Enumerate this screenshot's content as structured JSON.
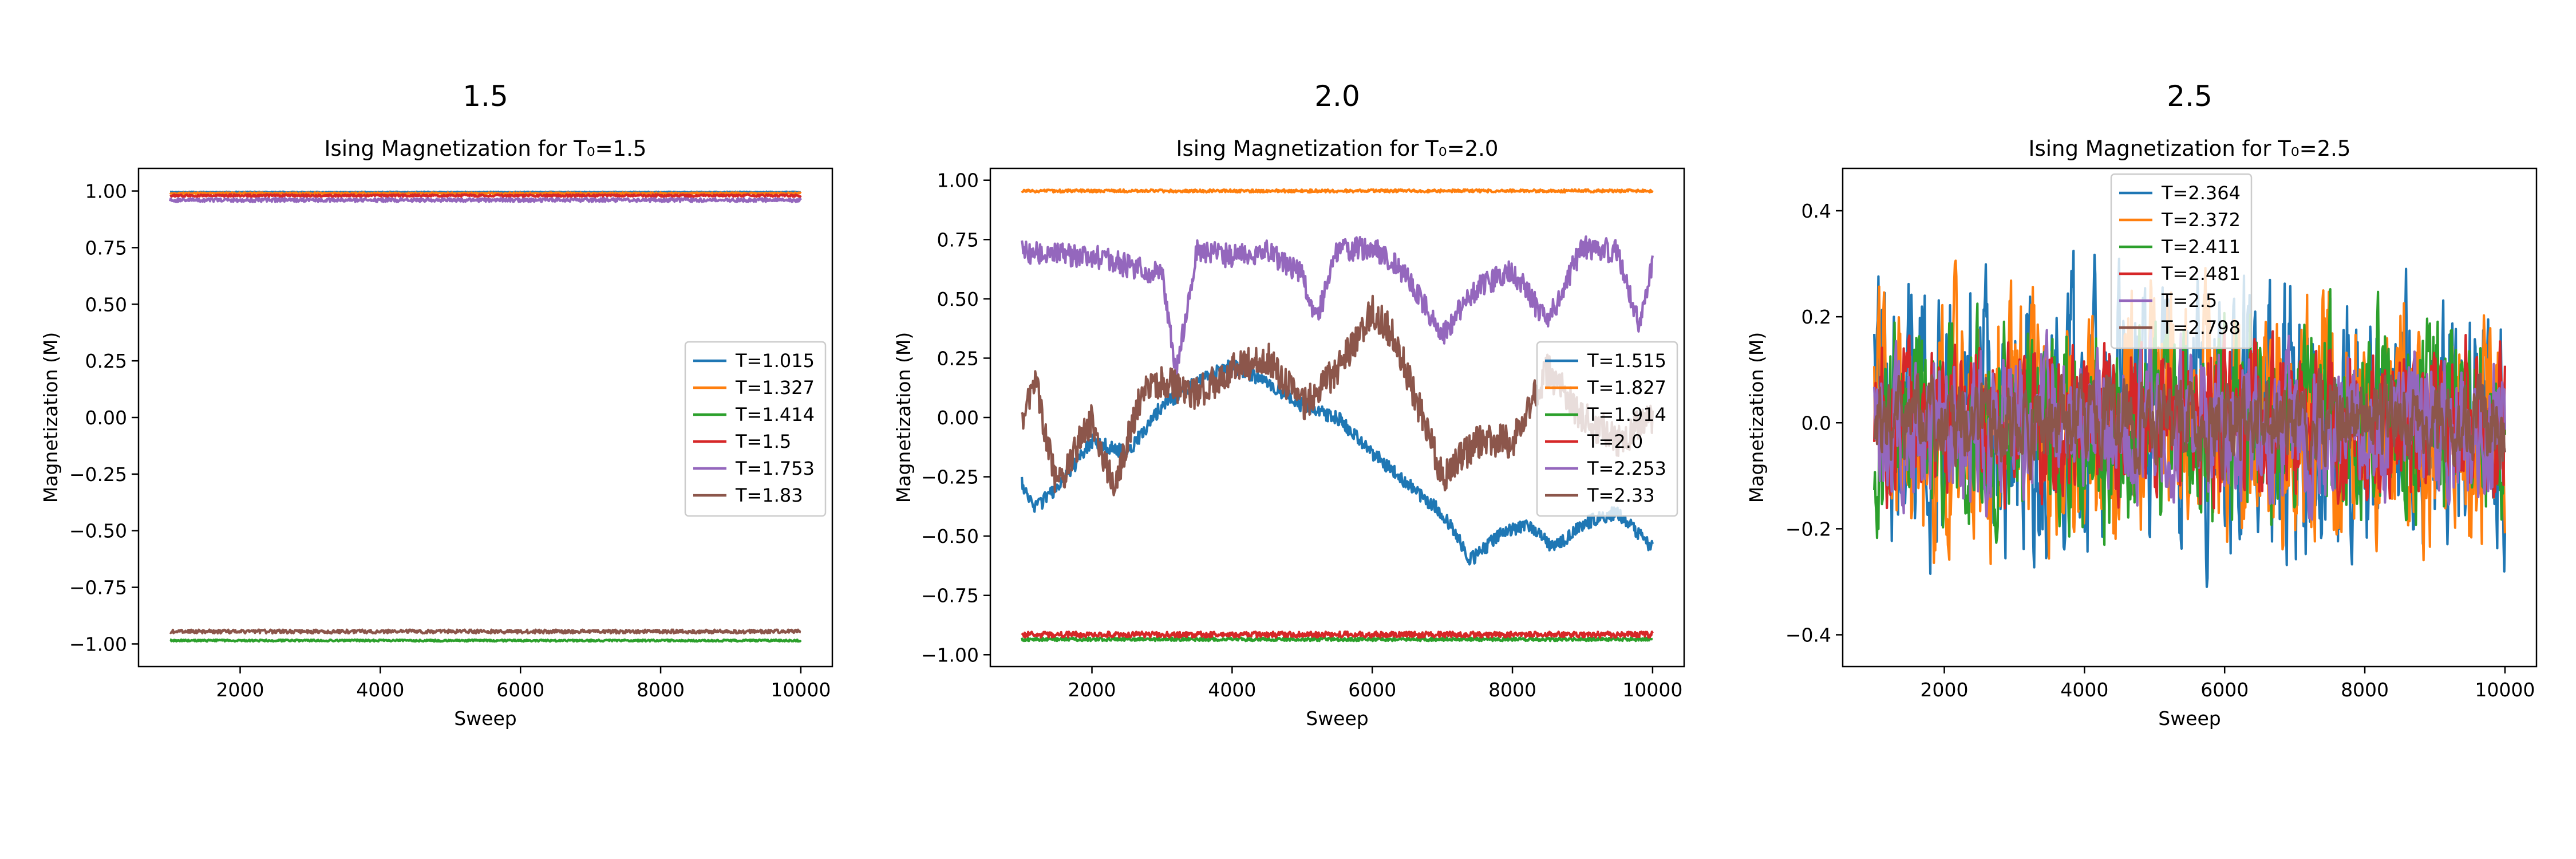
{
  "chart_data": [
    {
      "type": "line",
      "suptitle": "1.5",
      "title": "Ising Magnetization for T₀=1.5",
      "xlabel": "Sweep",
      "ylabel": "Magnetization (M)",
      "xlim": [
        550,
        10450
      ],
      "ylim": [
        -1.1,
        1.1
      ],
      "xticks": [
        2000,
        4000,
        6000,
        8000,
        10000
      ],
      "yticks": [
        -1.0,
        -0.75,
        -0.5,
        -0.25,
        0.0,
        0.25,
        0.5,
        0.75,
        1.0
      ],
      "ytick_labels": [
        "−1.00",
        "−0.75",
        "−0.50",
        "−0.25",
        "0.00",
        "0.25",
        "0.50",
        "0.75",
        "1.00"
      ],
      "grid": false,
      "legend_position": "center-right",
      "x_range": [
        1000,
        10000
      ],
      "series": [
        {
          "name": "T=1.015",
          "color": "#1f77b4",
          "level": 0.995,
          "noise": 0.002,
          "mode": "flat"
        },
        {
          "name": "T=1.327",
          "color": "#ff7f0e",
          "level": 0.99,
          "noise": 0.003,
          "mode": "flat"
        },
        {
          "name": "T=1.414",
          "color": "#2ca02c",
          "level": -0.985,
          "noise": 0.004,
          "mode": "flat"
        },
        {
          "name": "T=1.5",
          "color": "#d62728",
          "level": 0.98,
          "noise": 0.005,
          "mode": "flat"
        },
        {
          "name": "T=1.753",
          "color": "#9467bd",
          "level": 0.96,
          "noise": 0.008,
          "mode": "flat"
        },
        {
          "name": "T=1.83",
          "color": "#8c564b",
          "level": -0.945,
          "noise": 0.008,
          "mode": "flat"
        }
      ]
    },
    {
      "type": "line",
      "suptitle": "2.0",
      "title": "Ising Magnetization for T₀=2.0",
      "xlabel": "Sweep",
      "ylabel": "Magnetization (M)",
      "xlim": [
        550,
        10450
      ],
      "ylim": [
        -1.05,
        1.05
      ],
      "xticks": [
        2000,
        4000,
        6000,
        8000,
        10000
      ],
      "yticks": [
        -1.0,
        -0.75,
        -0.5,
        -0.25,
        0.0,
        0.25,
        0.5,
        0.75,
        1.0
      ],
      "ytick_labels": [
        "−1.00",
        "−0.75",
        "−0.50",
        "−0.25",
        "0.00",
        "0.25",
        "0.50",
        "0.75",
        "1.00"
      ],
      "grid": false,
      "legend_position": "center-right",
      "x_range": [
        1000,
        10000
      ],
      "series": [
        {
          "name": "T=1.515",
          "color": "#1f77b4",
          "mode": "anchors",
          "noise": 0.03,
          "anchors": [
            [
              1000,
              -0.28
            ],
            [
              1200,
              -0.38
            ],
            [
              1500,
              -0.3
            ],
            [
              2000,
              -0.1
            ],
            [
              2500,
              -0.15
            ],
            [
              3000,
              0.05
            ],
            [
              3500,
              0.15
            ],
            [
              4000,
              0.22
            ],
            [
              4500,
              0.15
            ],
            [
              5000,
              0.05
            ],
            [
              5500,
              0.0
            ],
            [
              6000,
              -0.15
            ],
            [
              6500,
              -0.28
            ],
            [
              7000,
              -0.4
            ],
            [
              7400,
              -0.6
            ],
            [
              7800,
              -0.5
            ],
            [
              8200,
              -0.45
            ],
            [
              8600,
              -0.55
            ],
            [
              9000,
              -0.45
            ],
            [
              9500,
              -0.4
            ],
            [
              10000,
              -0.55
            ]
          ]
        },
        {
          "name": "T=1.827",
          "color": "#ff7f0e",
          "level": 0.955,
          "noise": 0.006,
          "mode": "flat"
        },
        {
          "name": "T=1.914",
          "color": "#2ca02c",
          "level": -0.935,
          "noise": 0.007,
          "mode": "flat"
        },
        {
          "name": "T=2.0",
          "color": "#d62728",
          "level": -0.915,
          "noise": 0.012,
          "mode": "flat"
        },
        {
          "name": "T=2.253",
          "color": "#9467bd",
          "mode": "anchors",
          "noise": 0.05,
          "anchors": [
            [
              1000,
              0.7
            ],
            [
              2000,
              0.68
            ],
            [
              3000,
              0.6
            ],
            [
              3200,
              0.2
            ],
            [
              3500,
              0.7
            ],
            [
              4000,
              0.68
            ],
            [
              4500,
              0.7
            ],
            [
              5000,
              0.6
            ],
            [
              5200,
              0.4
            ],
            [
              5500,
              0.7
            ],
            [
              6000,
              0.72
            ],
            [
              6500,
              0.6
            ],
            [
              7000,
              0.35
            ],
            [
              7500,
              0.55
            ],
            [
              8000,
              0.62
            ],
            [
              8500,
              0.4
            ],
            [
              9000,
              0.72
            ],
            [
              9500,
              0.7
            ],
            [
              9800,
              0.4
            ],
            [
              10000,
              0.65
            ]
          ]
        },
        {
          "name": "T=2.33",
          "color": "#8c564b",
          "mode": "anchors",
          "noise": 0.07,
          "anchors": [
            [
              1000,
              0.0
            ],
            [
              1200,
              0.15
            ],
            [
              1500,
              -0.3
            ],
            [
              2000,
              0.0
            ],
            [
              2300,
              -0.3
            ],
            [
              2700,
              0.1
            ],
            [
              3000,
              0.15
            ],
            [
              3500,
              0.1
            ],
            [
              4000,
              0.2
            ],
            [
              4500,
              0.25
            ],
            [
              5000,
              0.05
            ],
            [
              5500,
              0.2
            ],
            [
              6000,
              0.45
            ],
            [
              6300,
              0.35
            ],
            [
              6600,
              0.1
            ],
            [
              7000,
              -0.25
            ],
            [
              7500,
              -0.1
            ],
            [
              8000,
              -0.1
            ],
            [
              8500,
              0.2
            ],
            [
              9000,
              0.0
            ],
            [
              9500,
              -0.1
            ],
            [
              10000,
              0.0
            ]
          ]
        }
      ]
    },
    {
      "type": "line",
      "suptitle": "2.5",
      "title": "Ising Magnetization for T₀=2.5",
      "xlabel": "Sweep",
      "ylabel": "Magnetization (M)",
      "xlim": [
        550,
        10450
      ],
      "ylim": [
        -0.46,
        0.48
      ],
      "xticks": [
        2000,
        4000,
        6000,
        8000,
        10000
      ],
      "yticks": [
        -0.4,
        -0.2,
        0.0,
        0.2,
        0.4
      ],
      "ytick_labels": [
        "−0.4",
        "−0.2",
        "0.0",
        "0.2",
        "0.4"
      ],
      "grid": false,
      "legend_position": "top-center",
      "x_range": [
        1000,
        10000
      ],
      "series": [
        {
          "name": "T=2.364",
          "color": "#1f77b4",
          "mode": "noise",
          "amp": 0.18,
          "seed": 11
        },
        {
          "name": "T=2.372",
          "color": "#ff7f0e",
          "mode": "noise",
          "amp": 0.17,
          "seed": 23
        },
        {
          "name": "T=2.411",
          "color": "#2ca02c",
          "mode": "noise",
          "amp": 0.14,
          "seed": 37
        },
        {
          "name": "T=2.481",
          "color": "#d62728",
          "mode": "noise",
          "amp": 0.11,
          "seed": 41
        },
        {
          "name": "T=2.5",
          "color": "#9467bd",
          "mode": "noise",
          "amp": 0.1,
          "seed": 53
        },
        {
          "name": "T=2.798",
          "color": "#8c564b",
          "mode": "noise",
          "amp": 0.06,
          "seed": 67
        }
      ]
    }
  ]
}
